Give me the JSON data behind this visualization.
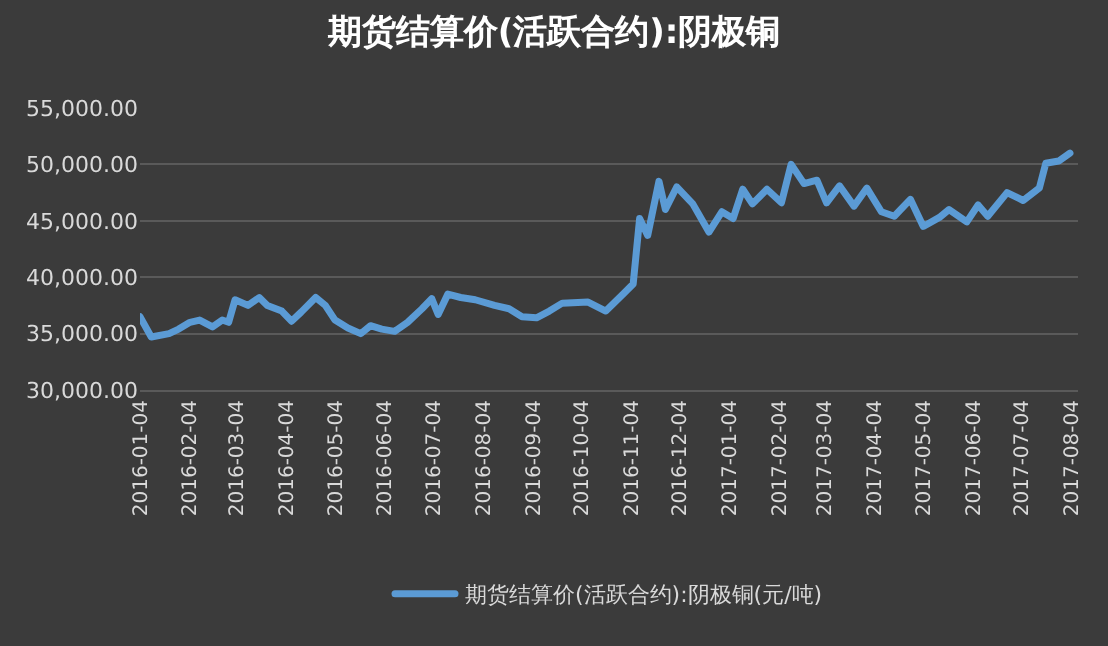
{
  "chart_data": {
    "type": "line",
    "title": "期货结算价(活跃合约):阴极铜",
    "x": [
      "2016-01-04",
      "2016-01-11",
      "2016-01-22",
      "2016-01-28",
      "2016-02-04",
      "2016-02-10",
      "2016-02-18",
      "2016-02-24",
      "2016-02-28",
      "2016-03-03",
      "2016-03-11",
      "2016-03-18",
      "2016-03-23",
      "2016-04-01",
      "2016-04-07",
      "2016-04-13",
      "2016-04-22",
      "2016-04-28",
      "2016-05-04",
      "2016-05-12",
      "2016-05-20",
      "2016-05-26",
      "2016-06-02",
      "2016-06-10",
      "2016-06-18",
      "2016-06-27",
      "2016-07-03",
      "2016-07-07",
      "2016-07-13",
      "2016-07-21",
      "2016-07-30",
      "2016-08-11",
      "2016-08-20",
      "2016-08-28",
      "2016-09-06",
      "2016-09-14",
      "2016-09-22",
      "2016-10-08",
      "2016-10-19",
      "2016-10-29",
      "2016-11-05",
      "2016-11-09",
      "2016-11-14",
      "2016-11-21",
      "2016-11-25",
      "2016-12-02",
      "2016-12-12",
      "2016-12-22",
      "2016-12-30",
      "2017-01-06",
      "2017-01-12",
      "2017-01-18",
      "2017-01-27",
      "2017-02-05",
      "2017-02-11",
      "2017-02-19",
      "2017-02-27",
      "2017-03-05",
      "2017-03-13",
      "2017-03-22",
      "2017-03-30",
      "2017-04-08",
      "2017-04-16",
      "2017-04-26",
      "2017-05-04",
      "2017-05-14",
      "2017-05-20",
      "2017-05-31",
      "2017-06-07",
      "2017-06-13",
      "2017-06-25",
      "2017-07-05",
      "2017-07-15",
      "2017-07-19",
      "2017-07-27",
      "2017-08-03"
    ],
    "series": [
      {
        "name": "期货结算价(活跃合约):阴极铜(元/吨)",
        "color": "#5b9bd5",
        "values": [
          36500,
          34700,
          35000,
          35400,
          36000,
          36200,
          35600,
          36200,
          36000,
          38000,
          37500,
          38200,
          37500,
          37000,
          36100,
          36900,
          38200,
          37500,
          36200,
          35500,
          35000,
          35700,
          35400,
          35200,
          36000,
          37200,
          38100,
          36700,
          38500,
          38200,
          38000,
          37500,
          37200,
          36500,
          36400,
          37000,
          37700,
          37800,
          37000,
          38400,
          39400,
          45200,
          43700,
          48500,
          46000,
          48000,
          46500,
          44000,
          45800,
          45200,
          47800,
          46500,
          47800,
          46600,
          50000,
          48300,
          48600,
          46600,
          48100,
          46300,
          47900,
          45800,
          45400,
          46900,
          44500,
          45300,
          46000,
          44900,
          46400,
          45400,
          47500,
          46800,
          47900,
          50100,
          50300,
          51000
        ]
      }
    ],
    "xlim": [
      "2016-01-04",
      "2017-08-08"
    ],
    "xticks": [
      {
        "value": "2016-01-04",
        "label": "2016-01-04"
      },
      {
        "value": "2016-02-04",
        "label": "2016-02-04"
      },
      {
        "value": "2016-03-04",
        "label": "2016-03-04"
      },
      {
        "value": "2016-04-04",
        "label": "2016-04-04"
      },
      {
        "value": "2016-05-04",
        "label": "2016-05-04"
      },
      {
        "value": "2016-06-04",
        "label": "2016-06-04"
      },
      {
        "value": "2016-07-04",
        "label": "2016-07-04"
      },
      {
        "value": "2016-08-04",
        "label": "2016-08-04"
      },
      {
        "value": "2016-09-04",
        "label": "2016-09-04"
      },
      {
        "value": "2016-10-04",
        "label": "2016-10-04"
      },
      {
        "value": "2016-11-04",
        "label": "2016-11-04"
      },
      {
        "value": "2016-12-04",
        "label": "2016-12-04"
      },
      {
        "value": "2017-01-04",
        "label": "2017-01-04"
      },
      {
        "value": "2017-02-04",
        "label": "2017-02-04"
      },
      {
        "value": "2017-03-04",
        "label": "2017-03-04"
      },
      {
        "value": "2017-04-04",
        "label": "2017-04-04"
      },
      {
        "value": "2017-05-04",
        "label": "2017-05-04"
      },
      {
        "value": "2017-06-04",
        "label": "2017-06-04"
      },
      {
        "value": "2017-07-04",
        "label": "2017-07-04"
      },
      {
        "value": "2017-08-04",
        "label": "2017-08-04"
      }
    ],
    "ylim": [
      30000,
      55000
    ],
    "yticks": [
      {
        "value": 30000,
        "label": "30,000.00"
      },
      {
        "value": 35000,
        "label": "35,000.00"
      },
      {
        "value": 40000,
        "label": "40,000.00"
      },
      {
        "value": 45000,
        "label": "45,000.00"
      },
      {
        "value": 50000,
        "label": "50,000.00"
      },
      {
        "value": 55000,
        "label": "55,000.00"
      }
    ],
    "grid": "y",
    "legend": "bottom",
    "marker": "none",
    "line_style": "solid"
  }
}
